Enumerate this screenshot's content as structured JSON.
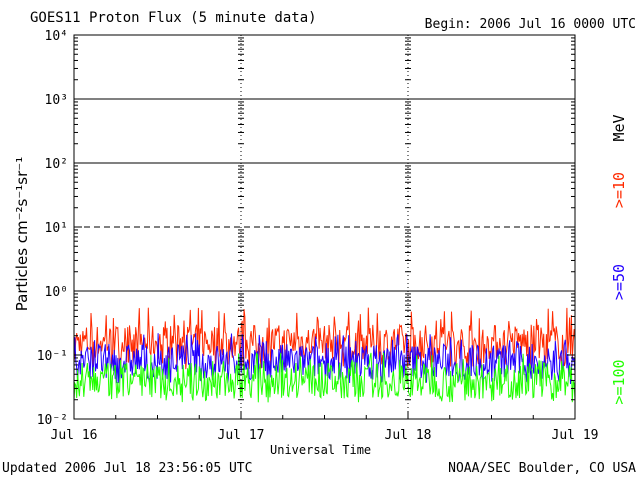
{
  "header": {
    "title": "GOES11 Proton Flux (5 minute data)",
    "begin": "Begin: 2006 Jul 16 0000 UTC"
  },
  "footer": {
    "updated": "Updated 2006 Jul 18 23:56:05 UTC",
    "credit": "NOAA/SEC Boulder, CO USA"
  },
  "chart_data": {
    "type": "line",
    "xlabel": "Universal Time",
    "ylabel": "Particles cm⁻²s⁻¹sr⁻¹",
    "yscale": "log",
    "ylim": [
      0.01,
      10000
    ],
    "y_ticks": [
      "10⁻²",
      "10⁻¹",
      "10⁰",
      "10¹",
      "10²",
      "10³",
      "10⁴"
    ],
    "x_ticks": [
      "Jul 16",
      "Jul 17",
      "Jul 18",
      "Jul 19"
    ],
    "x_range_days": [
      "2006-07-16",
      "2006-07-19"
    ],
    "units_label": "MeV",
    "series": [
      {
        "name": ">=10",
        "color": "#ff2a00",
        "typical": 0.16,
        "min": 0.06,
        "max": 0.55
      },
      {
        "name": ">=50",
        "color": "#2200ff",
        "typical": 0.08,
        "min": 0.035,
        "max": 0.22
      },
      {
        "name": ">=100",
        "color": "#22ff00",
        "typical": 0.04,
        "min": 0.018,
        "max": 0.11
      }
    ],
    "thresholds": [
      {
        "value": 10,
        "style": "dashed"
      },
      {
        "value": 1,
        "style": "solid"
      },
      {
        "value": 100,
        "style": "solid"
      },
      {
        "value": 1000,
        "style": "solid"
      }
    ]
  }
}
